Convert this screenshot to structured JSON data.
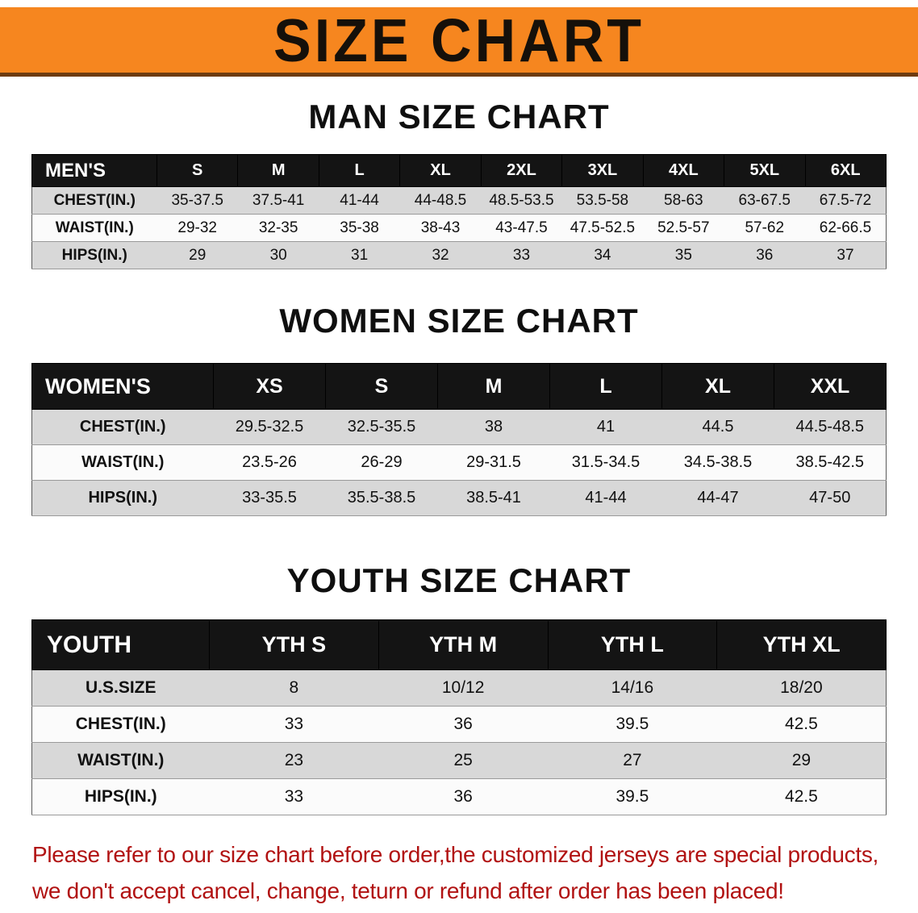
{
  "banner": {
    "title": "SIZE CHART"
  },
  "sections": [
    {
      "heading": "MAN SIZE CHART",
      "table": {
        "group_label": "MEN'S",
        "columns": [
          "S",
          "M",
          "L",
          "XL",
          "2XL",
          "3XL",
          "4XL",
          "5XL",
          "6XL"
        ],
        "rows": [
          {
            "label": "CHEST(IN.)",
            "values": [
              "35-37.5",
              "37.5-41",
              "41-44",
              "44-48.5",
              "48.5-53.5",
              "53.5-58",
              "58-63",
              "63-67.5",
              "67.5-72"
            ]
          },
          {
            "label": "WAIST(IN.)",
            "values": [
              "29-32",
              "32-35",
              "35-38",
              "38-43",
              "43-47.5",
              "47.5-52.5",
              "52.5-57",
              "57-62",
              "62-66.5"
            ]
          },
          {
            "label": "HIPS(IN.)",
            "values": [
              "29",
              "30",
              "31",
              "32",
              "33",
              "34",
              "35",
              "36",
              "37"
            ]
          }
        ]
      }
    },
    {
      "heading": "WOMEN SIZE CHART",
      "table": {
        "group_label": "WOMEN'S",
        "columns": [
          "XS",
          "S",
          "M",
          "L",
          "XL",
          "XXL"
        ],
        "rows": [
          {
            "label": "CHEST(IN.)",
            "values": [
              "29.5-32.5",
              "32.5-35.5",
              "38",
              "41",
              "44.5",
              "44.5-48.5"
            ]
          },
          {
            "label": "WAIST(IN.)",
            "values": [
              "23.5-26",
              "26-29",
              "29-31.5",
              "31.5-34.5",
              "34.5-38.5",
              "38.5-42.5"
            ]
          },
          {
            "label": "HIPS(IN.)",
            "values": [
              "33-35.5",
              "35.5-38.5",
              "38.5-41",
              "41-44",
              "44-47",
              "47-50"
            ]
          }
        ]
      }
    },
    {
      "heading": "YOUTH SIZE CHART",
      "table": {
        "group_label": "YOUTH",
        "columns": [
          "YTH S",
          "YTH M",
          "YTH L",
          "YTH XL"
        ],
        "rows": [
          {
            "label": "U.S.SIZE",
            "values": [
              "8",
              "10/12",
              "14/16",
              "18/20"
            ]
          },
          {
            "label": "CHEST(IN.)",
            "values": [
              "33",
              "36",
              "39.5",
              "42.5"
            ]
          },
          {
            "label": "WAIST(IN.)",
            "values": [
              "23",
              "25",
              "27",
              "29"
            ]
          },
          {
            "label": "HIPS(IN.)",
            "values": [
              "33",
              "36",
              "39.5",
              "42.5"
            ]
          }
        ]
      }
    }
  ],
  "footer": {
    "line1": "Please refer to our size chart before order,the customized jerseys are special products,",
    "line2": "we don't accept cancel, change, teturn or refund after order has been placed!"
  },
  "colors": {
    "banner_bg": "#f6861f",
    "banner_edge": "#6e3c10",
    "header_bg": "#141414",
    "row_shade": "#d8d8d8",
    "row_light": "#fbfbfb",
    "footer_text": "#b11212"
  }
}
